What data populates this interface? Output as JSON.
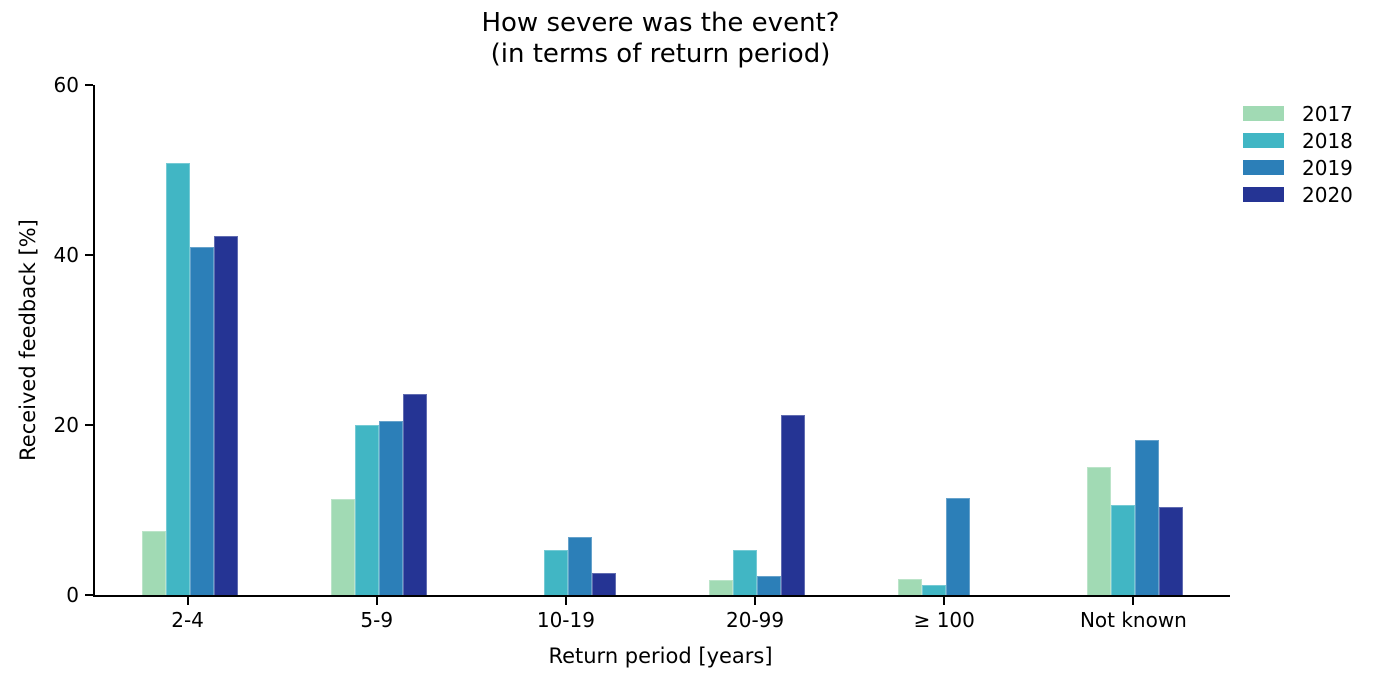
{
  "chart_data": {
    "type": "bar",
    "title_line1": "How severe was the event?",
    "title_line2": "(in terms of return period)",
    "xlabel": "Return period [years]",
    "ylabel": "Received feedback [%]",
    "ylim": [
      0,
      60
    ],
    "yticks": [
      0,
      20,
      40,
      60
    ],
    "categories": [
      "2-4",
      "5-9",
      "10-19",
      "20-99",
      "≥ 100",
      "Not known"
    ],
    "series": [
      {
        "name": "2017",
        "color": "#a1dab4",
        "values": [
          7.5,
          11.3,
          0,
          1.8,
          1.9,
          15.1
        ]
      },
      {
        "name": "2018",
        "color": "#41b6c4",
        "values": [
          50.8,
          20.0,
          5.3,
          5.3,
          1.2,
          10.6
        ]
      },
      {
        "name": "2019",
        "color": "#2c7fb8",
        "values": [
          41.0,
          20.5,
          6.8,
          2.2,
          11.4,
          18.2
        ]
      },
      {
        "name": "2020",
        "color": "#253494",
        "values": [
          42.2,
          23.7,
          2.6,
          21.2,
          0,
          10.4
        ]
      }
    ],
    "legend_position": "upper-right-outside",
    "grid": false,
    "axis_color": "#000000",
    "background_color": "#ffffff"
  }
}
